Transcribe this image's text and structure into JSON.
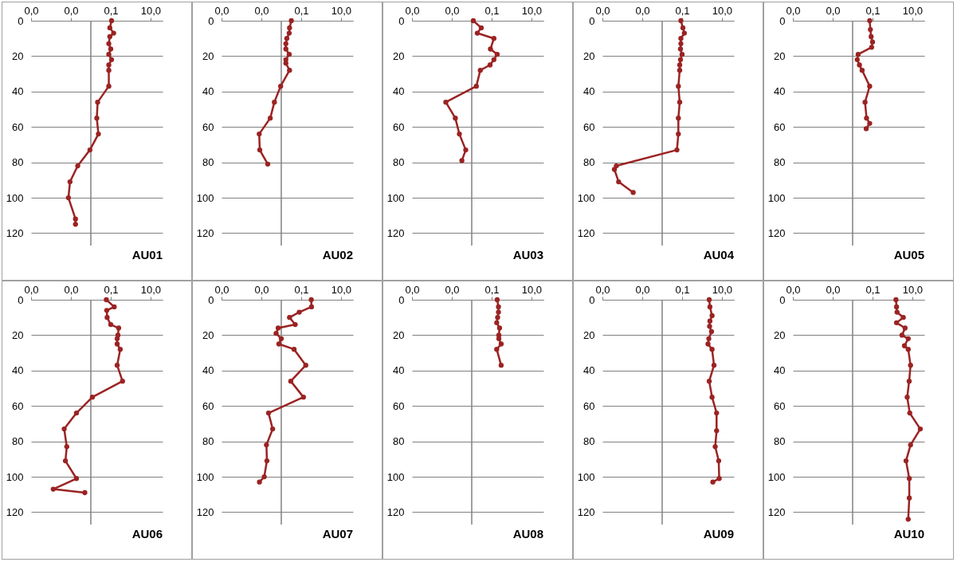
{
  "chart_data": [
    {
      "type": "line",
      "title": "AU01",
      "color": "#9b2323",
      "marker": "circle",
      "log": "x",
      "grid": "y",
      "xlim": [
        1e-05,
        40
      ],
      "ylim": [
        127,
        0
      ],
      "xticks": [
        {
          "value": 1e-05,
          "label": "0,0"
        },
        {
          "value": 0.001,
          "label": "0,0"
        },
        {
          "value": 0.1,
          "label": "0,1"
        },
        {
          "value": 10,
          "label": "10,0"
        }
      ],
      "yticks": [
        0,
        20,
        40,
        60,
        80,
        100,
        120
      ],
      "ref_lines": [
        {
          "axis": "x",
          "value": 0.01,
          "color": "#808080"
        }
      ],
      "x": [
        0.11,
        0.09,
        0.14,
        0.09,
        0.08,
        0.1,
        0.08,
        0.11,
        0.08,
        0.08,
        0.08,
        0.022,
        0.02,
        0.024,
        0.009,
        0.0022,
        0.0009,
        0.00075,
        0.0017,
        0.0017
      ],
      "values": [
        0,
        4,
        7,
        9,
        13,
        16,
        19,
        22,
        25,
        28,
        37,
        46,
        55,
        64,
        73,
        82,
        91,
        100,
        112,
        115
      ]
    },
    {
      "type": "line",
      "title": "AU02",
      "color": "#9b2323",
      "marker": "circle",
      "log": "x",
      "grid": "y",
      "xlim": [
        1e-05,
        40
      ],
      "ylim": [
        127,
        0
      ],
      "xticks": [
        {
          "value": 1e-05,
          "label": "0,0"
        },
        {
          "value": 0.001,
          "label": "0,0"
        },
        {
          "value": 0.1,
          "label": "0,1"
        },
        {
          "value": 10,
          "label": "10,0"
        }
      ],
      "yticks": [
        0,
        20,
        40,
        60,
        80,
        100,
        120
      ],
      "ref_lines": [
        {
          "axis": "x",
          "value": 0.01,
          "color": "#808080"
        }
      ],
      "x": [
        0.032,
        0.026,
        0.025,
        0.019,
        0.017,
        0.017,
        0.025,
        0.017,
        0.017,
        0.026,
        0.0093,
        0.0045,
        0.0028,
        0.00078,
        0.00083,
        0.0021
      ],
      "values": [
        0,
        4,
        7,
        10,
        13,
        16,
        19,
        22,
        24,
        28,
        37,
        46,
        55,
        64,
        73,
        81
      ]
    },
    {
      "type": "line",
      "title": "AU03",
      "color": "#9b2323",
      "marker": "circle",
      "log": "x",
      "grid": "y",
      "xlim": [
        1e-05,
        40
      ],
      "ylim": [
        127,
        0
      ],
      "xticks": [
        {
          "value": 1e-05,
          "label": "0,0"
        },
        {
          "value": 0.001,
          "label": "0,0"
        },
        {
          "value": 0.1,
          "label": "0,1"
        },
        {
          "value": 10,
          "label": "10,0"
        }
      ],
      "yticks": [
        0,
        20,
        40,
        60,
        80,
        100,
        120
      ],
      "ref_lines": [
        {
          "axis": "x",
          "value": 0.01,
          "color": "#808080"
        }
      ],
      "x": [
        0.012,
        0.03,
        0.019,
        0.13,
        0.087,
        0.19,
        0.13,
        0.083,
        0.027,
        0.017,
        0.0005,
        0.0015,
        0.0024,
        0.005,
        0.0032
      ],
      "values": [
        0,
        4,
        7,
        10,
        16,
        19,
        22,
        25,
        28,
        37,
        46,
        55,
        64,
        73,
        79
      ]
    },
    {
      "type": "line",
      "title": "AU04",
      "color": "#9b2323",
      "marker": "circle",
      "log": "x",
      "grid": "y",
      "xlim": [
        1e-05,
        40
      ],
      "ylim": [
        127,
        0
      ],
      "xticks": [
        {
          "value": 1e-05,
          "label": "0,0"
        },
        {
          "value": 0.001,
          "label": "0,0"
        },
        {
          "value": 0.1,
          "label": "0,1"
        },
        {
          "value": 10,
          "label": "10,0"
        }
      ],
      "yticks": [
        0,
        20,
        40,
        60,
        80,
        100,
        120
      ],
      "ref_lines": [
        {
          "axis": "x",
          "value": 0.01,
          "color": "#808080"
        }
      ],
      "x": [
        0.087,
        0.11,
        0.13,
        0.087,
        0.087,
        0.083,
        0.1,
        0.083,
        0.076,
        0.076,
        0.065,
        0.076,
        0.065,
        0.065,
        0.055,
        5e-05,
        4e-05,
        6.5e-05,
        0.00035
      ],
      "values": [
        0,
        4,
        7,
        10,
        13,
        16,
        19,
        22,
        25,
        28,
        37,
        46,
        55,
        64,
        73,
        82,
        84,
        91,
        97
      ]
    },
    {
      "type": "line",
      "title": "AU05",
      "color": "#9b2323",
      "marker": "circle",
      "log": "x",
      "grid": "y",
      "xlim": [
        1e-05,
        40
      ],
      "ylim": [
        127,
        0
      ],
      "xticks": [
        {
          "value": 1e-05,
          "label": "0,0"
        },
        {
          "value": 0.001,
          "label": "0,0"
        },
        {
          "value": 0.1,
          "label": "0,1"
        },
        {
          "value": 10,
          "label": "10,0"
        }
      ],
      "yticks": [
        0,
        20,
        40,
        60,
        80,
        100,
        120
      ],
      "ref_lines": [
        {
          "axis": "x",
          "value": 0.01,
          "color": "#808080"
        }
      ],
      "x": [
        0.072,
        0.078,
        0.085,
        0.1,
        0.09,
        0.019,
        0.017,
        0.022,
        0.03,
        0.072,
        0.042,
        0.05,
        0.072,
        0.048
      ],
      "values": [
        0,
        5,
        9,
        12,
        15,
        19,
        22,
        25,
        28,
        37,
        46,
        55,
        58,
        61
      ]
    },
    {
      "type": "line",
      "title": "AU06",
      "color": "#9b2323",
      "marker": "circle",
      "log": "x",
      "grid": "y",
      "xlim": [
        1e-05,
        40
      ],
      "ylim": [
        127,
        0
      ],
      "xticks": [
        {
          "value": 1e-05,
          "label": "0,0"
        },
        {
          "value": 0.001,
          "label": "0,0"
        },
        {
          "value": 0.1,
          "label": "0,1"
        },
        {
          "value": 10,
          "label": "10,0"
        }
      ],
      "yticks": [
        0,
        20,
        40,
        60,
        80,
        100,
        120
      ],
      "ref_lines": [
        {
          "axis": "x",
          "value": 0.01,
          "color": "#808080"
        }
      ],
      "x": [
        0.06,
        0.15,
        0.063,
        0.066,
        0.1,
        0.25,
        0.23,
        0.21,
        0.21,
        0.3,
        0.21,
        0.39,
        0.012,
        0.0019,
        0.00046,
        0.00062,
        0.00053,
        0.0019,
        0.00013,
        0.005
      ],
      "values": [
        0,
        4,
        6,
        10,
        14,
        16,
        20,
        22,
        25,
        28,
        37,
        46,
        55,
        64,
        73,
        83,
        91,
        101,
        107,
        109
      ]
    },
    {
      "type": "line",
      "title": "AU07",
      "color": "#9b2323",
      "marker": "circle",
      "log": "x",
      "grid": "y",
      "xlim": [
        1e-05,
        40
      ],
      "ylim": [
        127,
        0
      ],
      "xticks": [
        {
          "value": 1e-05,
          "label": "0,0"
        },
        {
          "value": 0.001,
          "label": "0,0"
        },
        {
          "value": 0.1,
          "label": "0,1"
        },
        {
          "value": 10,
          "label": "10,0"
        }
      ],
      "yticks": [
        0,
        20,
        40,
        60,
        80,
        100,
        120
      ],
      "ref_lines": [
        {
          "axis": "x",
          "value": 0.01,
          "color": "#808080"
        }
      ],
      "x": [
        0.32,
        0.33,
        0.08,
        0.026,
        0.05,
        0.007,
        0.0055,
        0.01,
        0.0076,
        0.044,
        0.17,
        0.03,
        0.13,
        0.0023,
        0.0037,
        0.0018,
        0.0019,
        0.0014,
        0.0008
      ],
      "values": [
        0,
        4,
        7,
        10,
        14,
        16,
        19,
        22,
        25,
        28,
        37,
        46,
        55,
        64,
        73,
        82,
        91,
        100,
        103
      ]
    },
    {
      "type": "line",
      "title": "AU08",
      "color": "#9b2323",
      "marker": "circle",
      "log": "x",
      "grid": "y",
      "xlim": [
        1e-05,
        40
      ],
      "ylim": [
        127,
        0
      ],
      "xticks": [
        {
          "value": 1e-05,
          "label": "0,0"
        },
        {
          "value": 0.001,
          "label": "0,0"
        },
        {
          "value": 0.1,
          "label": "0,1"
        },
        {
          "value": 10,
          "label": "10,0"
        }
      ],
      "yticks": [
        0,
        20,
        40,
        60,
        80,
        100,
        120
      ],
      "ref_lines": [
        {
          "axis": "x",
          "value": 0.01,
          "color": "#808080"
        }
      ],
      "x": [
        0.19,
        0.22,
        0.22,
        0.2,
        0.18,
        0.25,
        0.23,
        0.23,
        0.3,
        0.18,
        0.3
      ],
      "values": [
        0,
        4,
        7,
        10,
        13,
        16,
        20,
        22,
        25,
        28,
        37
      ]
    },
    {
      "type": "line",
      "title": "AU09",
      "color": "#9b2323",
      "marker": "circle",
      "log": "x",
      "grid": "y",
      "xlim": [
        1e-05,
        40
      ],
      "ylim": [
        127,
        0
      ],
      "xticks": [
        {
          "value": 1e-05,
          "label": "0,0"
        },
        {
          "value": 0.001,
          "label": "0,0"
        },
        {
          "value": 0.1,
          "label": "0,1"
        },
        {
          "value": 10,
          "label": "10,0"
        }
      ],
      "yticks": [
        0,
        20,
        40,
        60,
        80,
        100,
        120
      ],
      "ref_lines": [
        {
          "axis": "x",
          "value": 0.01,
          "color": "#808080"
        }
      ],
      "x": [
        2.3,
        2.5,
        3.2,
        2.5,
        2.4,
        3.0,
        2.2,
        2.0,
        3.2,
        4,
        2.3,
        3.2,
        5.4,
        5.4,
        4.6,
        6.9,
        7.3,
        3.5
      ],
      "values": [
        0,
        4,
        9,
        12,
        15,
        18,
        22,
        25,
        28,
        37,
        46,
        55,
        64,
        74,
        83,
        91,
        101,
        103
      ]
    },
    {
      "type": "line",
      "title": "AU10",
      "color": "#9b2323",
      "marker": "circle",
      "log": "x",
      "grid": "y",
      "xlim": [
        1e-05,
        40
      ],
      "ylim": [
        127,
        0
      ],
      "xticks": [
        {
          "value": 1e-05,
          "label": "0,0"
        },
        {
          "value": 0.001,
          "label": "0,0"
        },
        {
          "value": 0.1,
          "label": "0,1"
        },
        {
          "value": 10,
          "label": "10,0"
        }
      ],
      "yticks": [
        0,
        20,
        40,
        60,
        80,
        100,
        120
      ],
      "ref_lines": [
        {
          "axis": "x",
          "value": 0.01,
          "color": "#808080"
        }
      ],
      "x": [
        1.5,
        1.6,
        1.7,
        3.5,
        1.6,
        4.3,
        3.0,
        6.2,
        4.0,
        6.2,
        8.1,
        6.9,
        5.5,
        7.4,
        25,
        8.1,
        4.8,
        7,
        7,
        6.2
      ],
      "values": [
        0,
        4,
        7,
        10,
        13,
        16,
        20,
        22,
        26,
        28,
        37,
        46,
        55,
        64,
        73,
        82,
        91,
        101,
        112,
        124
      ]
    }
  ]
}
